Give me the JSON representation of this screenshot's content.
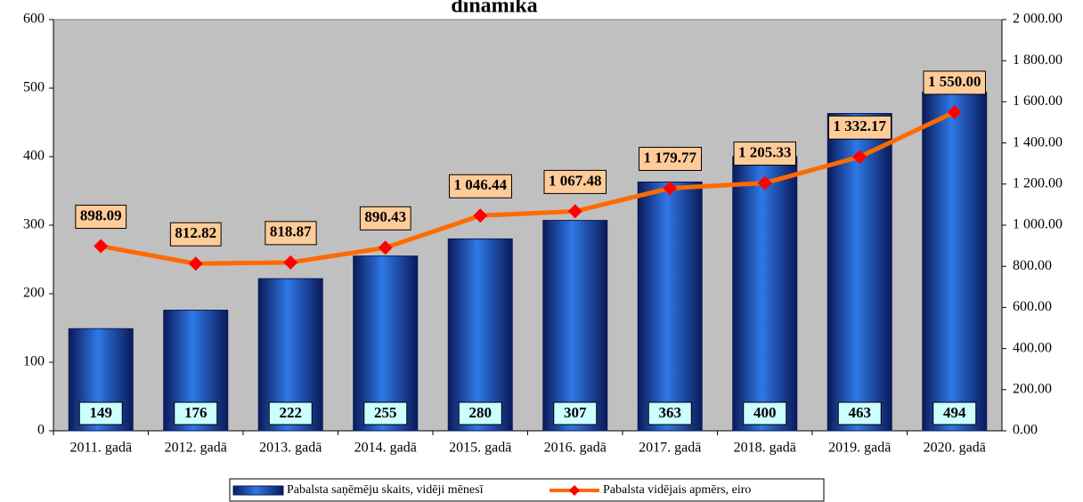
{
  "chart_data": {
    "type": "bar-line",
    "title": "dinamika",
    "categories": [
      "2011. gadā",
      "2012. gadā",
      "2013. gadā",
      "2014. gadā",
      "2015. gadā",
      "2016. gadā",
      "2017. gadā",
      "2018. gadā",
      "2019. gadā",
      "2020. gadā"
    ],
    "series": [
      {
        "name": "Pabalsta saņēmēju skaits, vidēji mēnesī",
        "type": "bar",
        "color": "#1f5fd0",
        "values": [
          149,
          176,
          222,
          255,
          280,
          307,
          363,
          400,
          463,
          494
        ]
      },
      {
        "name": "Pabalsta vidējais apmērs, eiro",
        "type": "line",
        "axis": "y2",
        "color": "#ff6a00",
        "marker_color": "#ff0000",
        "values": [
          898.09,
          812.82,
          818.87,
          890.43,
          1046.44,
          1067.48,
          1179.77,
          1205.33,
          1332.17,
          1550.0
        ],
        "value_labels": [
          "898.09",
          "812.82",
          "818.87",
          "890.43",
          "1 046.44",
          "1 067.48",
          "1 179.77",
          "1 205.33",
          "1 332.17",
          "1 550.00"
        ]
      }
    ],
    "ylim": [
      0,
      600
    ],
    "yticks": [
      0,
      100,
      200,
      300,
      400,
      500,
      600
    ],
    "y2lim": [
      0,
      2000
    ],
    "y2ticks": [
      {
        "value": 0,
        "label": "0.00"
      },
      {
        "value": 200,
        "label": "200.00"
      },
      {
        "value": 400,
        "label": "400.00"
      },
      {
        "value": 600,
        "label": "600.00"
      },
      {
        "value": 800,
        "label": "800.00"
      },
      {
        "value": 1000,
        "label": "1 000.00"
      },
      {
        "value": 1200,
        "label": "1 200.00"
      },
      {
        "value": 1400,
        "label": "1 400.00"
      },
      {
        "value": 1600,
        "label": "1 600.00"
      },
      {
        "value": 1800,
        "label": "1 800.00"
      },
      {
        "value": 2000,
        "label": "2 000.00"
      }
    ],
    "plot_background": "#c0c0c0",
    "legend": "bottom"
  }
}
